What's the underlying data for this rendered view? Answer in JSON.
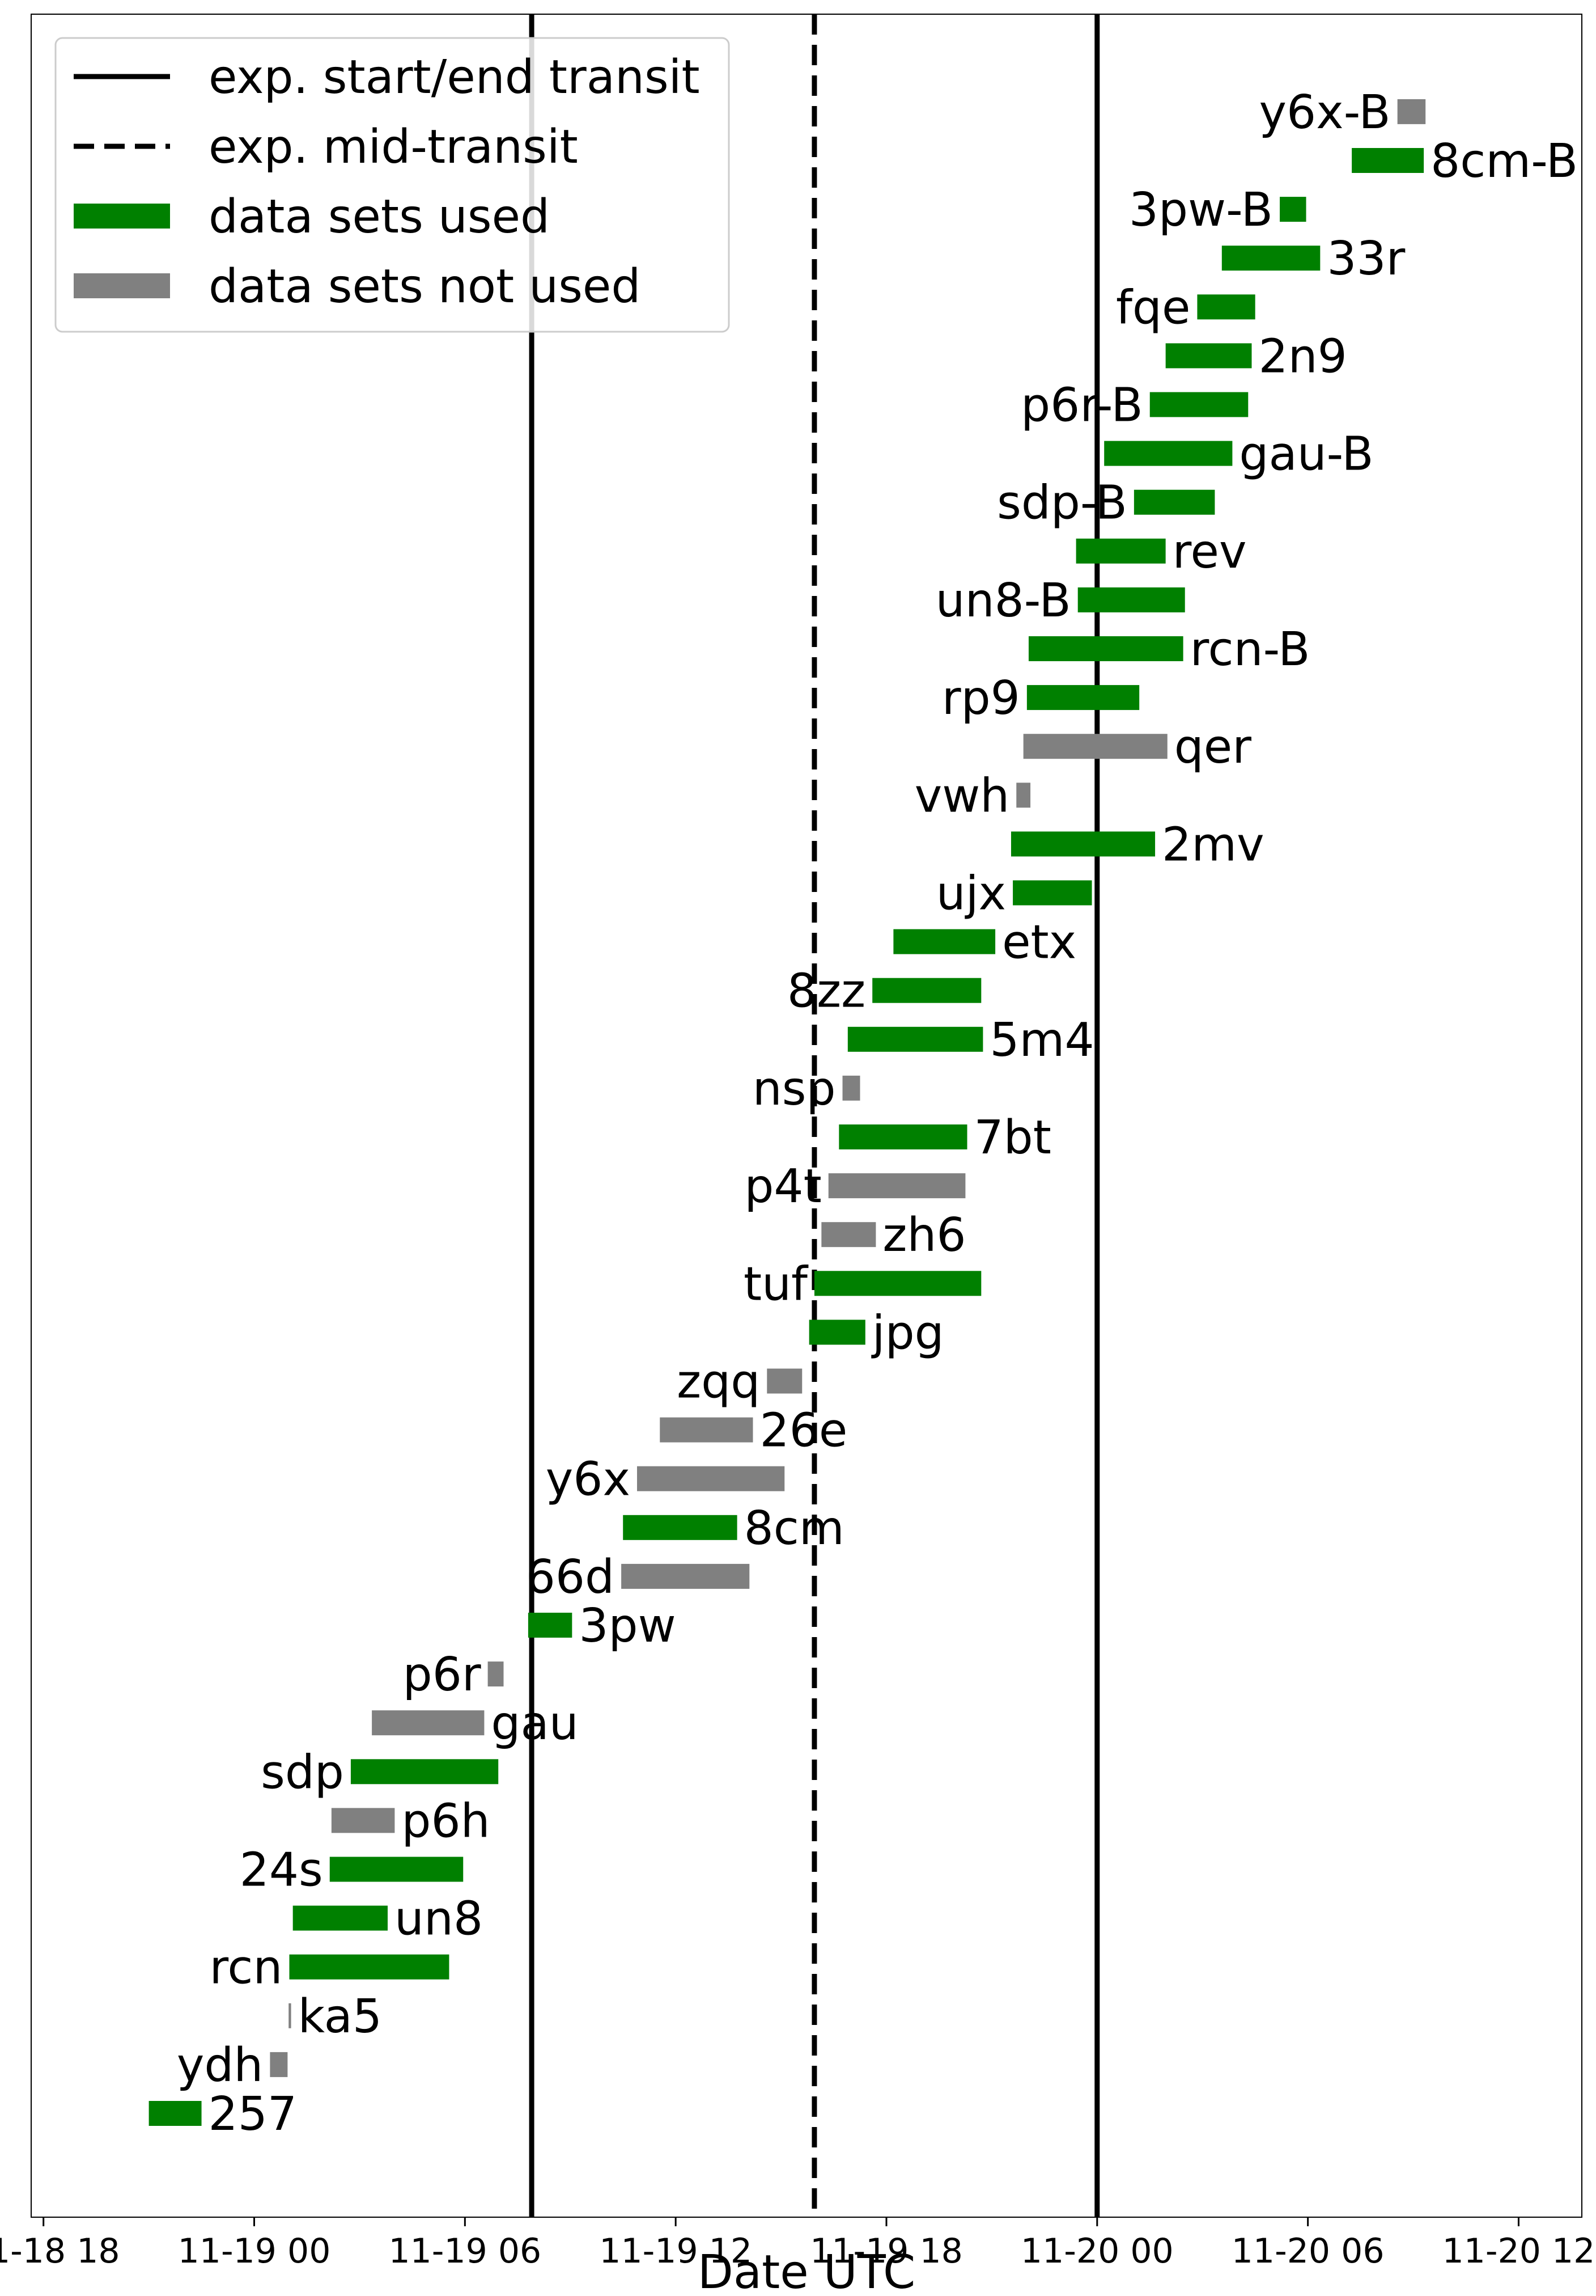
{
  "chart_data": {
    "type": "bar",
    "subtype": "horizontal-timeline",
    "xlabel": "Date UTC",
    "ylabel": "",
    "x_unit": "hours since 2000-11-18 18:00 UTC",
    "xlim": [
      -0.35,
      43.8
    ],
    "x_ticks": [
      {
        "value": 0,
        "label": "11-18 18"
      },
      {
        "value": 6,
        "label": "11-19 00"
      },
      {
        "value": 12,
        "label": "11-19 06"
      },
      {
        "value": 18,
        "label": "11-19 12"
      },
      {
        "value": 24,
        "label": "11-19 18"
      },
      {
        "value": 30,
        "label": "11-20 00"
      },
      {
        "value": 36,
        "label": "11-20 06"
      },
      {
        "value": 42,
        "label": "11-20 12"
      }
    ],
    "reference_lines": [
      {
        "x": 13.9,
        "style": "solid",
        "meaning": "exp. start/end transit"
      },
      {
        "x": 21.95,
        "style": "dashed",
        "meaning": "exp. mid-transit"
      },
      {
        "x": 30.0,
        "style": "solid",
        "meaning": "exp. start/end transit"
      }
    ],
    "legend": {
      "placement": "top-left",
      "entries": [
        {
          "label": "exp. start/end transit",
          "style": "solid-line",
          "color": "#000000"
        },
        {
          "label": "exp. mid-transit",
          "style": "dashed-line",
          "color": "#000000"
        },
        {
          "label": "data sets used",
          "style": "thick-bar",
          "color": "#008000"
        },
        {
          "label": "data sets not used",
          "style": "thick-bar",
          "color": "#808080"
        }
      ]
    },
    "colors": {
      "used": "#008000",
      "not_used": "#808080"
    },
    "grid": false,
    "series": [
      {
        "label": "257",
        "start": 3.0,
        "end": 4.5,
        "used": true,
        "label_side": "right"
      },
      {
        "label": "ydh",
        "start": 6.45,
        "end": 6.95,
        "used": false,
        "label_side": "left"
      },
      {
        "label": "ka5",
        "start": 6.98,
        "end": 7.05,
        "used": false,
        "label_side": "right"
      },
      {
        "label": "rcn",
        "start": 7.0,
        "end": 11.55,
        "used": true,
        "label_side": "left"
      },
      {
        "label": "un8",
        "start": 7.1,
        "end": 9.8,
        "used": true,
        "label_side": "right"
      },
      {
        "label": "24s",
        "start": 8.15,
        "end": 11.95,
        "used": true,
        "label_side": "left"
      },
      {
        "label": "p6h",
        "start": 8.2,
        "end": 10.0,
        "used": false,
        "label_side": "right"
      },
      {
        "label": "sdp",
        "start": 8.75,
        "end": 12.95,
        "used": true,
        "label_side": "left"
      },
      {
        "label": "gau",
        "start": 9.35,
        "end": 12.55,
        "used": false,
        "label_side": "right"
      },
      {
        "label": "p6r",
        "start": 12.65,
        "end": 13.1,
        "used": false,
        "label_side": "left"
      },
      {
        "label": "3pw",
        "start": 13.8,
        "end": 15.05,
        "used": true,
        "label_side": "right"
      },
      {
        "label": "66d",
        "start": 16.45,
        "end": 20.1,
        "used": false,
        "label_side": "left"
      },
      {
        "label": "8cm",
        "start": 16.5,
        "end": 19.75,
        "used": true,
        "label_side": "right"
      },
      {
        "label": "y6x",
        "start": 16.9,
        "end": 21.1,
        "used": false,
        "label_side": "left"
      },
      {
        "label": "26e",
        "start": 17.55,
        "end": 20.2,
        "used": false,
        "label_side": "right"
      },
      {
        "label": "zqq",
        "start": 20.6,
        "end": 21.6,
        "used": false,
        "label_side": "left"
      },
      {
        "label": "jpg",
        "start": 21.8,
        "end": 23.4,
        "used": true,
        "label_side": "right"
      },
      {
        "label": "tuf",
        "start": 21.95,
        "end": 26.7,
        "used": true,
        "label_side": "left"
      },
      {
        "label": "zh6",
        "start": 22.15,
        "end": 23.7,
        "used": false,
        "label_side": "right"
      },
      {
        "label": "p4t",
        "start": 22.35,
        "end": 26.25,
        "used": false,
        "label_side": "left"
      },
      {
        "label": "7bt",
        "start": 22.65,
        "end": 26.3,
        "used": true,
        "label_side": "right"
      },
      {
        "label": "nsp",
        "start": 22.75,
        "end": 23.25,
        "used": false,
        "label_side": "left"
      },
      {
        "label": "5m4",
        "start": 22.9,
        "end": 26.75,
        "used": true,
        "label_side": "right"
      },
      {
        "label": "8zz",
        "start": 23.6,
        "end": 26.7,
        "used": true,
        "label_side": "left"
      },
      {
        "label": "etx",
        "start": 24.2,
        "end": 27.1,
        "used": true,
        "label_side": "right"
      },
      {
        "label": "ujx",
        "start": 27.6,
        "end": 29.85,
        "used": true,
        "label_side": "left"
      },
      {
        "label": "2mv",
        "start": 27.55,
        "end": 31.65,
        "used": true,
        "label_side": "right"
      },
      {
        "label": "vwh",
        "start": 27.7,
        "end": 28.1,
        "used": false,
        "label_side": "left"
      },
      {
        "label": "qer",
        "start": 27.9,
        "end": 32.0,
        "used": false,
        "label_side": "right"
      },
      {
        "label": "rp9",
        "start": 28.0,
        "end": 31.2,
        "used": true,
        "label_side": "left"
      },
      {
        "label": "rcn-B",
        "start": 28.05,
        "end": 32.45,
        "used": true,
        "label_side": "right"
      },
      {
        "label": "un8-B",
        "start": 29.45,
        "end": 32.5,
        "used": true,
        "label_side": "left"
      },
      {
        "label": "rev",
        "start": 29.4,
        "end": 31.95,
        "used": true,
        "label_side": "right"
      },
      {
        "label": "sdp-B",
        "start": 31.05,
        "end": 33.35,
        "used": true,
        "label_side": "left"
      },
      {
        "label": "gau-B",
        "start": 30.2,
        "end": 33.85,
        "used": true,
        "label_side": "right"
      },
      {
        "label": "p6r-B",
        "start": 31.5,
        "end": 34.3,
        "used": true,
        "label_side": "left"
      },
      {
        "label": "2n9",
        "start": 31.95,
        "end": 34.4,
        "used": true,
        "label_side": "right"
      },
      {
        "label": "fqe",
        "start": 32.85,
        "end": 34.5,
        "used": true,
        "label_side": "left"
      },
      {
        "label": "33r",
        "start": 33.55,
        "end": 36.35,
        "used": true,
        "label_side": "right"
      },
      {
        "label": "3pw-B",
        "start": 35.2,
        "end": 35.95,
        "used": true,
        "label_side": "left"
      },
      {
        "label": "8cm-B",
        "start": 37.25,
        "end": 39.3,
        "used": true,
        "label_side": "right"
      },
      {
        "label": "y6x-B",
        "start": 38.55,
        "end": 39.35,
        "used": false,
        "label_side": "left"
      }
    ]
  }
}
